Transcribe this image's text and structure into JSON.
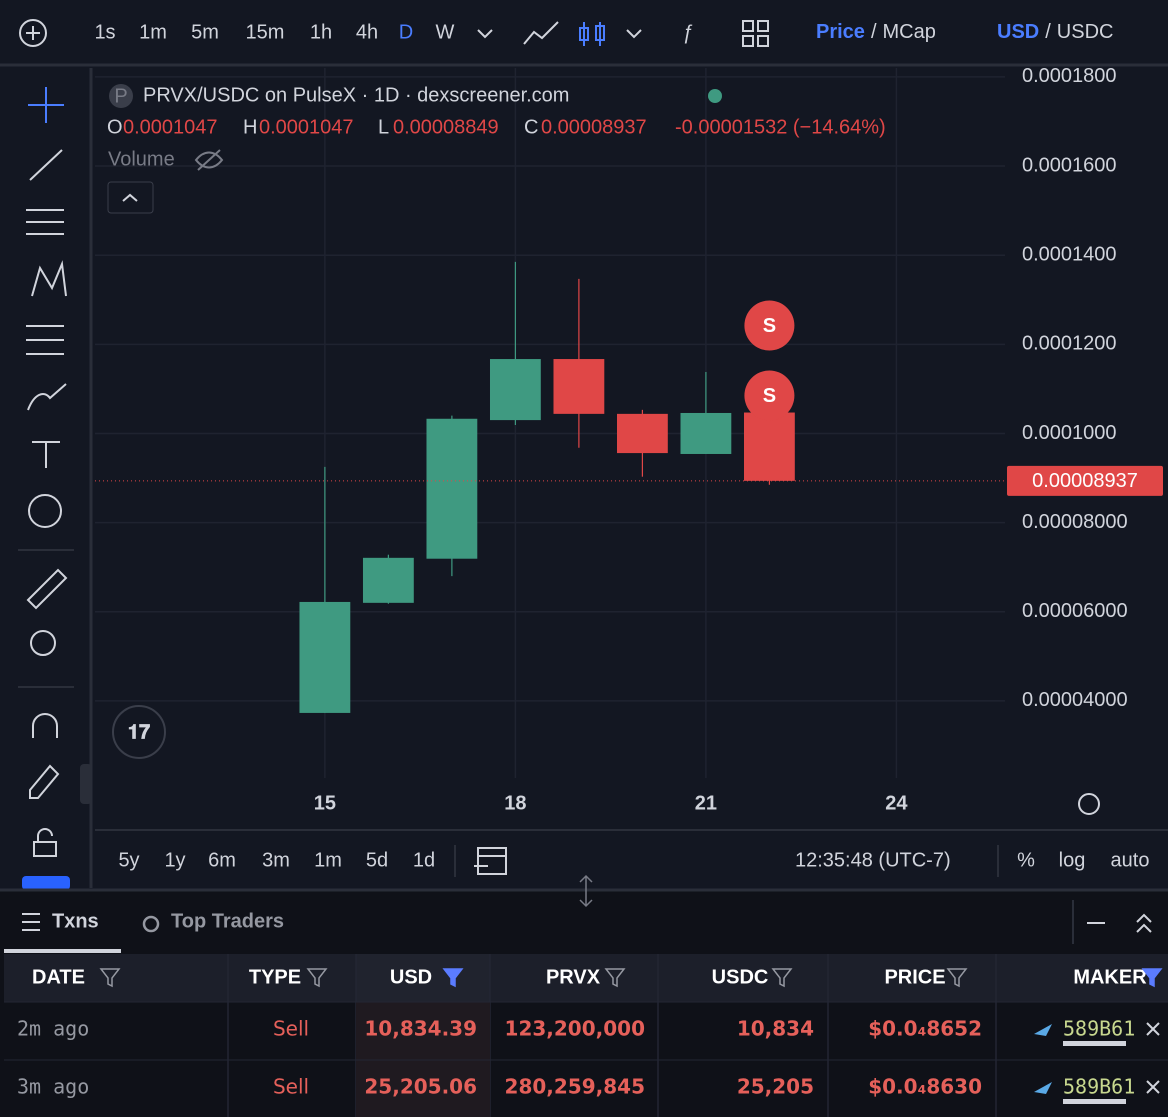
{
  "toolbar": {
    "intervals": [
      "1s",
      "1m",
      "5m",
      "15m",
      "1h",
      "4h",
      "D",
      "W"
    ],
    "active_interval": "D",
    "price_toggle": [
      "Price",
      "MCap"
    ],
    "separator": "/",
    "currency_toggle": [
      "USD",
      "USDC"
    ]
  },
  "chart_data": {
    "type": "candlestick",
    "title": "PRVX/USDC on PulseX · 1D · dexscreener.com",
    "symbol_icon": "P",
    "ohlc_legend": [
      {
        "key": "O",
        "value": "0.0001047"
      },
      {
        "key": "H",
        "value": "0.0001047"
      },
      {
        "key": "L",
        "value": "0.00008849"
      },
      {
        "key": "C",
        "value": "0.00008937"
      }
    ],
    "change": "-0.00001532 (−14.64%)",
    "volume_label": "Volume",
    "x": [
      15,
      16,
      17,
      18,
      19,
      20,
      21,
      22
    ],
    "open": [
      3.73e-05,
      6.2e-05,
      7.19e-05,
      0.000103,
      0.0001167,
      0.0001044,
      9.54e-05,
      0.0001047
    ],
    "high": [
      9.25e-05,
      7.28e-05,
      0.000104,
      0.0001385,
      0.0001347,
      0.0001053,
      0.0001138,
      0.0001047
    ],
    "low": [
      3.73e-05,
      6.18e-05,
      6.8e-05,
      0.0001019,
      9.68e-05,
      9.03e-05,
      9.54e-05,
      8.849e-05
    ],
    "close": [
      6.22e-05,
      7.21e-05,
      0.0001033,
      0.0001167,
      0.0001044,
      9.56e-05,
      0.0001046,
      8.937e-05
    ],
    "up_color": "#3f9a81",
    "down_color": "#e04747",
    "xlim": [
      11.38,
      25.71
    ],
    "xticks": [
      15,
      18,
      21,
      24
    ],
    "ylim": [
      2.27e-05,
      0.000182
    ],
    "yticks": [
      {
        "value": 4e-05,
        "label": "0.00004000"
      },
      {
        "value": 6e-05,
        "label": "0.00006000"
      },
      {
        "value": 8e-05,
        "label": "0.00008000"
      },
      {
        "value": 0.0001,
        "label": "0.0001000"
      },
      {
        "value": 0.00012,
        "label": "0.0001200"
      },
      {
        "value": 0.00014,
        "label": "0.0001400"
      },
      {
        "value": 0.00016,
        "label": "0.0001600"
      },
      {
        "value": 0.00018,
        "label": "0.0001800"
      }
    ],
    "last_price": {
      "value": 8.937e-05,
      "label": "0.00008937"
    },
    "markers": [
      "S",
      "S"
    ],
    "grid": true
  },
  "range_buttons": [
    "5y",
    "1y",
    "6m",
    "3m",
    "1m",
    "5d",
    "1d"
  ],
  "clock": "12:35:48 (UTC-7)",
  "scale_options": [
    "%",
    "log",
    "auto"
  ],
  "tabs": [
    "Txns",
    "Top Traders"
  ],
  "table": {
    "columns": [
      "DATE",
      "TYPE",
      "USD",
      "PRVX",
      "USDC",
      "PRICE",
      "MAKER"
    ],
    "rows": [
      [
        "2m ago",
        "Sell",
        "10,834.39",
        "123,200,000",
        "10,834",
        "$0.0₄8652",
        "589B61"
      ],
      [
        "3m ago",
        "Sell",
        "25,205.06",
        "280,259,845",
        "25,205",
        "$0.0₄8630",
        "589B61"
      ]
    ]
  }
}
